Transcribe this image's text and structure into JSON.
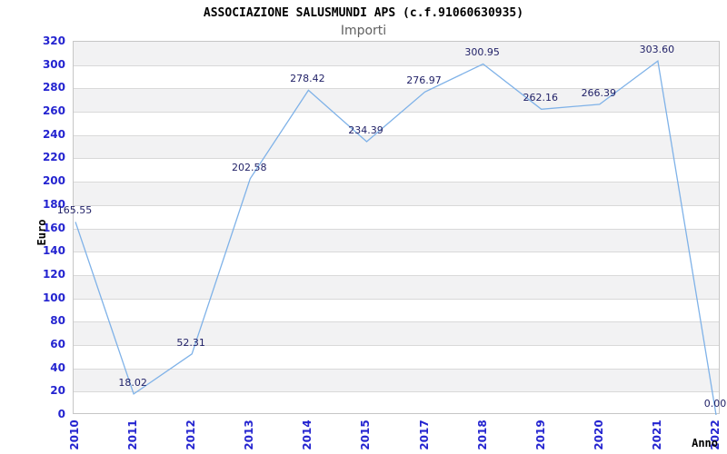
{
  "chart_data": {
    "type": "line",
    "title": "ASSOCIAZIONE SALUSMUNDI APS (c.f.91060630935)",
    "subtitle": "Importi",
    "xlabel": "Anno",
    "ylabel": "Euro",
    "categories": [
      "2010",
      "2011",
      "2012",
      "2013",
      "2014",
      "2015",
      "2017",
      "2018",
      "2019",
      "2020",
      "2021",
      "2022"
    ],
    "values": [
      165.55,
      18.02,
      52.31,
      202.58,
      278.42,
      234.39,
      276.97,
      300.95,
      262.16,
      266.39,
      303.6,
      0.0
    ],
    "value_labels": [
      "165.55",
      "18.02",
      "52.31",
      "202.58",
      "278.42",
      "234.39",
      "276.97",
      "300.95",
      "262.16",
      "266.39",
      "303.60",
      "0.00"
    ],
    "ylim": [
      0,
      320
    ],
    "ytick_step": 20,
    "grid": true,
    "bands_alternating": true,
    "legend": "none",
    "colors": {
      "line": "#7fb2e8",
      "tick_label": "#2424d0",
      "value_label": "#1f1f66",
      "band": "#f2f2f3",
      "gridline": "#d9d9d9",
      "border": "#c6c6c6",
      "title": "#000000",
      "subtitle": "#606060"
    }
  }
}
